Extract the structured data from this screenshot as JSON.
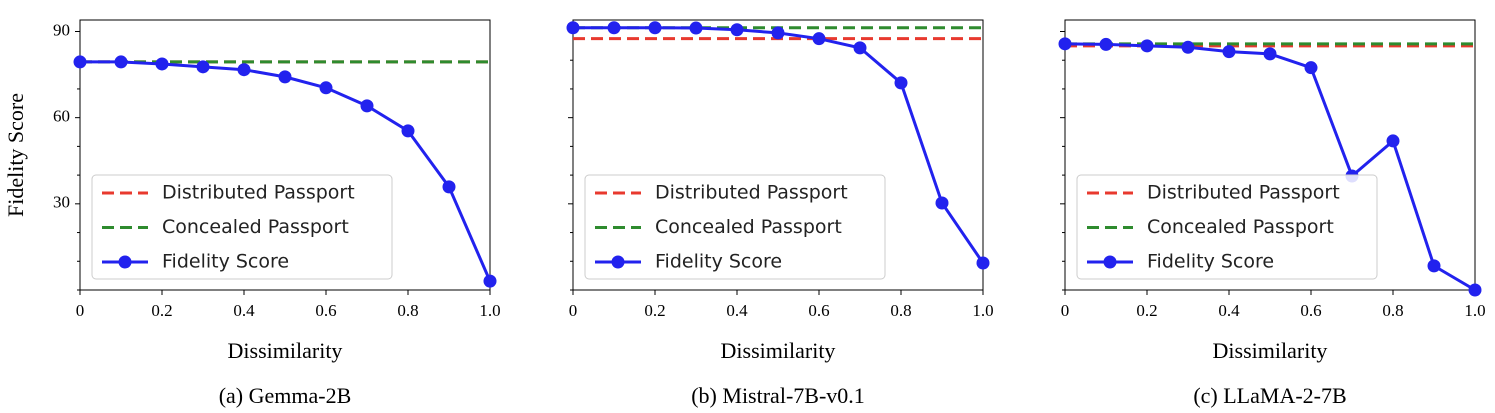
{
  "chart_data": [
    {
      "type": "line",
      "caption": "(a) Gemma-2B",
      "xlabel": "Dissimilarity",
      "ylabel": "Fidelity Score",
      "x": [
        0,
        0.1,
        0.2,
        0.3,
        0.4,
        0.5,
        0.6,
        0.7,
        0.8,
        0.9,
        1
      ],
      "series": [
        {
          "name": "Distributed Passport",
          "color": "#e8392e",
          "dashed": true,
          "marker": false,
          "values": [
            79.4,
            79.4,
            79.4,
            79.4,
            79.4,
            79.4,
            79.4,
            79.4,
            79.4,
            79.4,
            79.4
          ]
        },
        {
          "name": "Concealed Passport",
          "color": "#2e8b2e",
          "dashed": true,
          "marker": false,
          "values": [
            79.4,
            79.4,
            79.4,
            79.4,
            79.4,
            79.4,
            79.4,
            79.4,
            79.4,
            79.4,
            79.4
          ]
        },
        {
          "name": "Fidelity Score",
          "color": "#2222ee",
          "dashed": false,
          "marker": true,
          "values": [
            79.4,
            79.4,
            78.7,
            77.7,
            76.7,
            74.2,
            70.4,
            64.1,
            55.4,
            35.9,
            3.1
          ]
        }
      ],
      "xlim": [
        0,
        1
      ],
      "xticks": [
        0,
        0.2,
        0.4,
        0.6,
        0.8,
        {
          "value": 1,
          "label": "1.0"
        }
      ],
      "ylim": [
        0,
        94
      ],
      "yticks": [
        30,
        60,
        90
      ],
      "yminor": [
        0,
        10,
        20,
        40,
        50,
        70,
        80
      ],
      "ytick_labels": true,
      "legend": "lower left"
    },
    {
      "type": "line",
      "caption": "(b) Mistral-7B-v0.1",
      "xlabel": "Dissimilarity",
      "x": [
        0,
        0.1,
        0.2,
        0.3,
        0.4,
        0.5,
        0.6,
        0.7,
        0.8,
        0.9,
        1
      ],
      "series": [
        {
          "name": "Distributed Passport",
          "color": "#e8392e",
          "dashed": true,
          "marker": false,
          "values": [
            87.5,
            87.5,
            87.5,
            87.5,
            87.5,
            87.5,
            87.5,
            87.5,
            87.5,
            87.5,
            87.5
          ]
        },
        {
          "name": "Concealed Passport",
          "color": "#2e8b2e",
          "dashed": true,
          "marker": false,
          "values": [
            91.3,
            91.3,
            91.3,
            91.3,
            91.3,
            91.3,
            91.3,
            91.3,
            91.3,
            91.3,
            91.3
          ]
        },
        {
          "name": "Fidelity Score",
          "color": "#2222ee",
          "dashed": false,
          "marker": true,
          "values": [
            91.3,
            91.3,
            91.3,
            91.2,
            90.6,
            89.5,
            87.5,
            84.3,
            72.1,
            30.3,
            9.4
          ]
        }
      ],
      "xlim": [
        0,
        1
      ],
      "xticks": [
        0,
        0.2,
        0.4,
        0.6,
        0.8,
        {
          "value": 1,
          "label": "1.0"
        }
      ],
      "ylim": [
        0,
        94
      ],
      "yticks": [
        30,
        60,
        90
      ],
      "yminor": [
        0,
        10,
        20,
        40,
        50,
        70,
        80
      ],
      "ytick_labels": false,
      "legend": "lower left"
    },
    {
      "type": "line",
      "caption": "(c) LLaMA-2-7B",
      "xlabel": "Dissimilarity",
      "x": [
        0,
        0.1,
        0.2,
        0.3,
        0.4,
        0.5,
        0.6,
        0.7,
        0.8,
        0.9,
        1
      ],
      "series": [
        {
          "name": "Distributed Passport",
          "color": "#e8392e",
          "dashed": true,
          "marker": false,
          "values": [
            85,
            85,
            85,
            85,
            85,
            85,
            85,
            85,
            85,
            85,
            85
          ]
        },
        {
          "name": "Concealed Passport",
          "color": "#2e8b2e",
          "dashed": true,
          "marker": false,
          "values": [
            85.7,
            85.7,
            85.7,
            85.7,
            85.7,
            85.7,
            85.7,
            85.7,
            85.7,
            85.7,
            85.7
          ]
        },
        {
          "name": "Fidelity Score",
          "color": "#2222ee",
          "dashed": false,
          "marker": true,
          "values": [
            85.7,
            85.5,
            85,
            84.5,
            83,
            82.2,
            77.4,
            39.7,
            51.9,
            8.4,
            0
          ]
        }
      ],
      "xlim": [
        0,
        1
      ],
      "xticks": [
        0,
        0.2,
        0.4,
        0.6,
        0.8,
        {
          "value": 1,
          "label": "1.0"
        }
      ],
      "ylim": [
        0,
        94
      ],
      "yticks": [
        30,
        60,
        90
      ],
      "yminor": [
        0,
        10,
        20,
        40,
        50,
        70,
        80
      ],
      "ytick_labels": false,
      "legend": "lower left"
    }
  ]
}
